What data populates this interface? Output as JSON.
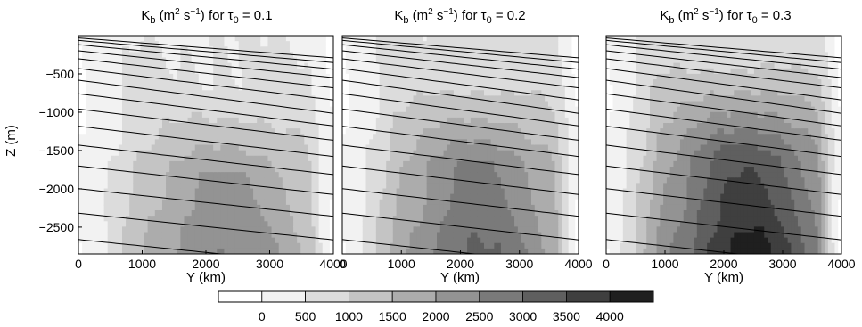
{
  "chart_data": [
    {
      "type": "heatmap",
      "title": {
        "prefix": "K",
        "sub1": "b",
        "units_open": " (m",
        "sup1": "2",
        "units_mid": " s",
        "sup2": "−1",
        "units_close": ") for τ",
        "sub2": "0",
        "value": " = 0.1"
      },
      "xlabel": "Y (km)",
      "ylabel": "Z (m)",
      "xlim": [
        0,
        4000
      ],
      "ylim": [
        -2850,
        0
      ],
      "xticks": [
        "0",
        "1000",
        "2000",
        "3000",
        "4000"
      ],
      "yticks": [
        "-500",
        "-1000",
        "-1500",
        "-2000",
        "-2500"
      ],
      "show_yaxis": true,
      "core_max": 2500,
      "core_top": -900,
      "core_center": 2300
    },
    {
      "type": "heatmap",
      "title": {
        "prefix": "K",
        "sub1": "b",
        "units_open": " (m",
        "sup1": "2",
        "units_mid": " s",
        "sup2": "−1",
        "units_close": ") for τ",
        "sub2": "0",
        "value": " = 0.2"
      },
      "xlabel": "Y (km)",
      "ylabel": "",
      "xlim": [
        0,
        4000
      ],
      "ylim": [
        -2850,
        0
      ],
      "xticks": [
        "0",
        "1000",
        "2000",
        "3000",
        "4000"
      ],
      "yticks": [],
      "show_yaxis": false,
      "core_max": 3100,
      "core_top": -700,
      "core_center": 2300
    },
    {
      "type": "heatmap",
      "title": {
        "prefix": "K",
        "sub1": "b",
        "units_open": " (m",
        "sup1": "2",
        "units_mid": " s",
        "sup2": "−1",
        "units_close": ") for τ",
        "sub2": "0",
        "value": " = 0.3"
      },
      "xlabel": "Y (km)",
      "ylabel": "",
      "xlim": [
        0,
        4000
      ],
      "ylim": [
        -2850,
        0
      ],
      "xticks": [
        "0",
        "1000",
        "2000",
        "3000",
        "4000"
      ],
      "yticks": [],
      "show_yaxis": false,
      "core_max": 4200,
      "core_top": -600,
      "core_center": 2400
    }
  ],
  "colorbar": {
    "levels": [
      "0",
      "500",
      "1000",
      "1500",
      "2000",
      "2500",
      "3000",
      "3500",
      "4000"
    ],
    "colors": [
      "#ffffff",
      "#f2f2f2",
      "#dcdcdc",
      "#c4c4c4",
      "#acacac",
      "#939393",
      "#7a7a7a",
      "#5f5f5f",
      "#3f3f3f",
      "#1f1f1f"
    ]
  }
}
